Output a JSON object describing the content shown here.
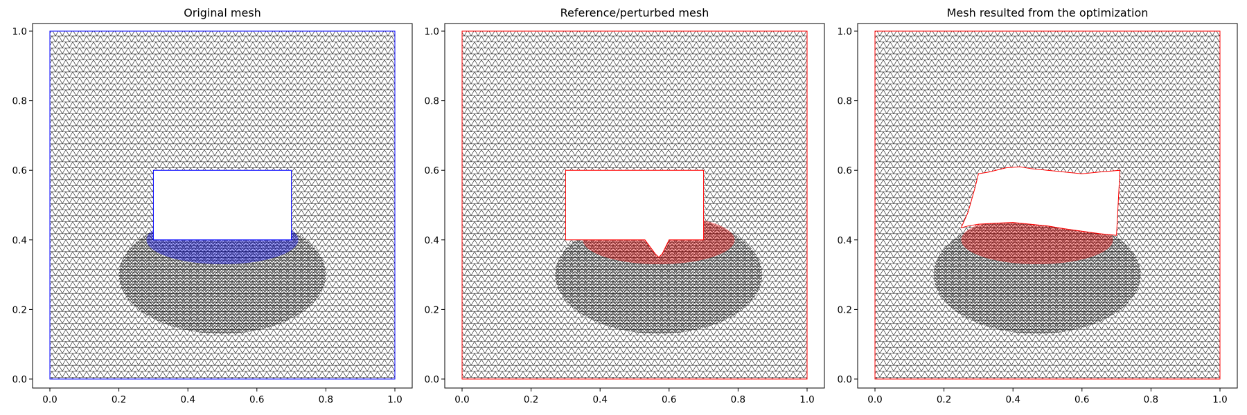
{
  "colors": {
    "mesh_blue": "#0000ff",
    "mesh_red": "#ff0000",
    "background": "#ffffff",
    "axes": "#000000"
  },
  "chart_data": [
    {
      "type": "mesh",
      "title": "Original mesh",
      "color": "#0000ff",
      "xlim": [
        0.0,
        1.0
      ],
      "ylim": [
        0.0,
        1.0
      ],
      "xticks": [
        "0.0",
        "0.2",
        "0.4",
        "0.6",
        "0.8",
        "1.0"
      ],
      "yticks": [
        "0.0",
        "0.2",
        "0.4",
        "0.6",
        "0.8",
        "1.0"
      ],
      "domain": [
        [
          0,
          0
        ],
        [
          1,
          0
        ],
        [
          1,
          1
        ],
        [
          0,
          1
        ]
      ],
      "hole": [
        [
          0.3,
          0.4
        ],
        [
          0.7,
          0.4
        ],
        [
          0.7,
          0.6
        ],
        [
          0.3,
          0.6
        ]
      ],
      "refinement_center": [
        0.5,
        0.3
      ]
    },
    {
      "type": "mesh",
      "title": "Reference/perturbed mesh",
      "color": "#ff0000",
      "xlim": [
        0.0,
        1.0
      ],
      "ylim": [
        0.0,
        1.0
      ],
      "xticks": [
        "0.0",
        "0.2",
        "0.4",
        "0.6",
        "0.8",
        "1.0"
      ],
      "yticks": [
        "0.0",
        "0.2",
        "0.4",
        "0.6",
        "0.8",
        "1.0"
      ],
      "domain": [
        [
          0,
          0
        ],
        [
          1,
          0
        ],
        [
          1,
          1
        ],
        [
          0,
          1
        ]
      ],
      "hole": [
        [
          0.3,
          0.4
        ],
        [
          0.53,
          0.4
        ],
        [
          0.56,
          0.36
        ],
        [
          0.57,
          0.35
        ],
        [
          0.58,
          0.36
        ],
        [
          0.6,
          0.4
        ],
        [
          0.7,
          0.4
        ],
        [
          0.7,
          0.6
        ],
        [
          0.3,
          0.6
        ]
      ],
      "refinement_center": [
        0.57,
        0.3
      ]
    },
    {
      "type": "mesh",
      "title": "Mesh resulted from the optimization",
      "color": "#ff0000",
      "xlim": [
        0.0,
        1.0
      ],
      "ylim": [
        0.0,
        1.0
      ],
      "xticks": [
        "0.0",
        "0.2",
        "0.4",
        "0.6",
        "0.8",
        "1.0"
      ],
      "yticks": [
        "0.0",
        "0.2",
        "0.4",
        "0.6",
        "0.8",
        "1.0"
      ],
      "domain": [
        [
          0,
          0
        ],
        [
          1,
          0
        ],
        [
          1,
          1
        ],
        [
          0,
          1
        ]
      ],
      "hole": [
        [
          0.25,
          0.435
        ],
        [
          0.27,
          0.44
        ],
        [
          0.3,
          0.445
        ],
        [
          0.35,
          0.448
        ],
        [
          0.4,
          0.45
        ],
        [
          0.45,
          0.445
        ],
        [
          0.5,
          0.44
        ],
        [
          0.55,
          0.432
        ],
        [
          0.6,
          0.425
        ],
        [
          0.65,
          0.418
        ],
        [
          0.7,
          0.413
        ],
        [
          0.71,
          0.6
        ],
        [
          0.65,
          0.595
        ],
        [
          0.6,
          0.59
        ],
        [
          0.55,
          0.595
        ],
        [
          0.5,
          0.6
        ],
        [
          0.45,
          0.605
        ],
        [
          0.42,
          0.61
        ],
        [
          0.38,
          0.607
        ],
        [
          0.33,
          0.595
        ],
        [
          0.3,
          0.59
        ],
        [
          0.29,
          0.55
        ],
        [
          0.27,
          0.48
        ]
      ],
      "refinement_center": [
        0.47,
        0.3
      ]
    }
  ]
}
